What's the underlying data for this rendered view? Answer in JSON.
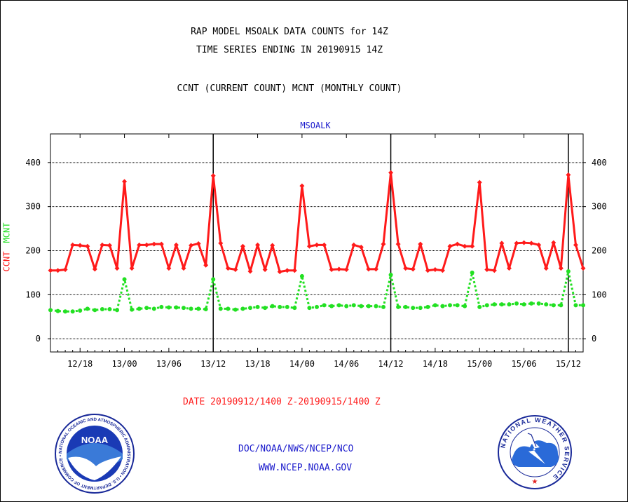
{
  "header": {
    "title_line1": "RAP MODEL MSOALK DATA COUNTS for 14Z",
    "title_line2": "TIME SERIES ENDING IN 20190915 14Z",
    "subtitle": "CCNT (CURRENT COUNT) MCNT (MONTHLY COUNT)",
    "station": "MSOALK"
  },
  "axis": {
    "ylabel_ccnt": "CCNT",
    "ylabel_mcnt": "MCNT",
    "xlabel": "DATE 20190912/1400 Z-20190915/1400 Z"
  },
  "footer": {
    "agency": "DOC/NOAA/NWS/NCEP/NCO",
    "website": "WWW.NCEP.NOAA.GOV"
  },
  "logos": {
    "noaa_text": "NOAA",
    "noaa_ring": "NATIONAL OCEANIC AND ATMOSPHERIC ADMINISTRATION • U.S. DEPARTMENT OF COMMERCE •",
    "nws_ring": "NATIONAL WEATHER SERVICE"
  },
  "colors": {
    "ccnt": "#ff1a1a",
    "mcnt": "#22e022",
    "title_text": "#000000",
    "station_text": "#1a1acc",
    "footer_text": "#1a1acc",
    "date_text": "#ff1a1a"
  },
  "chart_data": {
    "type": "line",
    "title": "RAP MODEL MSOALK DATA COUNTS for 14Z",
    "xlabel": "DATE 20190912/1400 Z-20190915/1400 Z",
    "ylabel": "CCNT MCNT",
    "ylim": [
      -30,
      465
    ],
    "yticks": [
      0,
      100,
      200,
      300,
      400
    ],
    "xlim_hours": [
      0,
      72
    ],
    "xticks": [
      {
        "label": "12/18",
        "hour": 4
      },
      {
        "label": "13/00",
        "hour": 10
      },
      {
        "label": "13/06",
        "hour": 16
      },
      {
        "label": "13/12",
        "hour": 22
      },
      {
        "label": "13/18",
        "hour": 28
      },
      {
        "label": "14/00",
        "hour": 34
      },
      {
        "label": "14/06",
        "hour": 40
      },
      {
        "label": "14/12",
        "hour": 46
      },
      {
        "label": "14/18",
        "hour": 52
      },
      {
        "label": "15/00",
        "hour": 58
      },
      {
        "label": "15/06",
        "hour": 64
      },
      {
        "label": "15/12",
        "hour": 70
      }
    ],
    "day_markers_hours": [
      22,
      46,
      70
    ],
    "grid": true,
    "series": [
      {
        "name": "CCNT",
        "values": [
          155,
          155,
          157,
          213,
          212,
          210,
          158,
          213,
          212,
          160,
          357,
          160,
          213,
          213,
          215,
          215,
          160,
          213,
          160,
          212,
          216,
          167,
          370,
          217,
          160,
          157,
          210,
          153,
          213,
          157,
          212,
          152,
          155,
          155,
          347,
          210,
          213,
          213,
          157,
          158,
          157,
          213,
          208,
          158,
          158,
          215,
          377,
          215,
          160,
          158,
          215,
          155,
          157,
          155,
          210,
          215,
          210,
          210,
          355,
          157,
          155,
          217,
          160,
          217,
          218,
          217,
          213,
          160,
          218,
          160,
          372,
          213,
          160
        ],
        "style": "solid"
      },
      {
        "name": "MCNT",
        "values": [
          65,
          63,
          62,
          62,
          64,
          68,
          65,
          67,
          67,
          65,
          135,
          66,
          68,
          70,
          68,
          72,
          71,
          71,
          70,
          68,
          68,
          67,
          135,
          68,
          68,
          66,
          68,
          70,
          72,
          70,
          74,
          72,
          72,
          70,
          142,
          70,
          72,
          76,
          74,
          76,
          74,
          76,
          74,
          74,
          74,
          72,
          145,
          72,
          72,
          70,
          70,
          72,
          76,
          74,
          76,
          76,
          74,
          150,
          72,
          76,
          78,
          78,
          78,
          80,
          78,
          80,
          80,
          78,
          76,
          76,
          153,
          76,
          76
        ],
        "style": "dotted"
      }
    ]
  }
}
